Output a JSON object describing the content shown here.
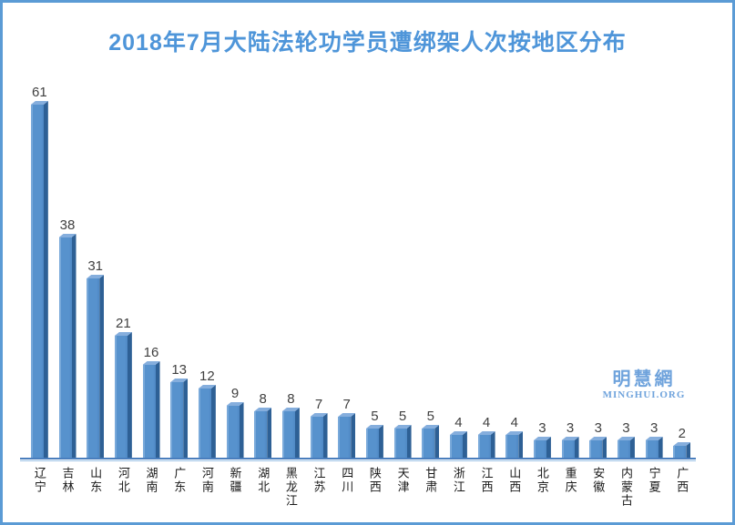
{
  "title": "2018年7月大陆法轮功学员遭绑架人次按地区分布",
  "logo": {
    "chinese": "明慧網",
    "english": "MINGHUI.ORG"
  },
  "colors": {
    "border": "#5b9bd5",
    "title_text": "#4e95d9",
    "bar_front": "#5792cd",
    "bar_side": "#2e6095",
    "bar_top": "#85aedd",
    "axis_dark": "#4a7ebd",
    "axis_light": "#9cc2e5",
    "value_label": "#404040",
    "category_label": "#1a1a1a",
    "logo_blue": "#6fa3dc"
  },
  "chart_data": {
    "type": "bar",
    "title": "2018年7月大陆法轮功学员遭绑架人次按地区分布",
    "categories": [
      "辽宁",
      "吉林",
      "山东",
      "河北",
      "湖南",
      "广东",
      "河南",
      "新疆",
      "湖北",
      "黑龙江",
      "江苏",
      "四川",
      "陕西",
      "天津",
      "甘肃",
      "浙江",
      "江西",
      "山西",
      "北京",
      "重庆",
      "安徽",
      "内蒙古",
      "宁夏",
      "广西"
    ],
    "values": [
      61,
      38,
      31,
      21,
      16,
      13,
      12,
      9,
      8,
      8,
      7,
      7,
      5,
      5,
      5,
      4,
      4,
      4,
      3,
      3,
      3,
      3,
      3,
      2
    ],
    "xlabel": "",
    "ylabel": "",
    "ylim": [
      0,
      65
    ],
    "grid": false,
    "legend": false,
    "value_labels_shown": true,
    "orientation": "vertical",
    "bar_style": "3d"
  }
}
